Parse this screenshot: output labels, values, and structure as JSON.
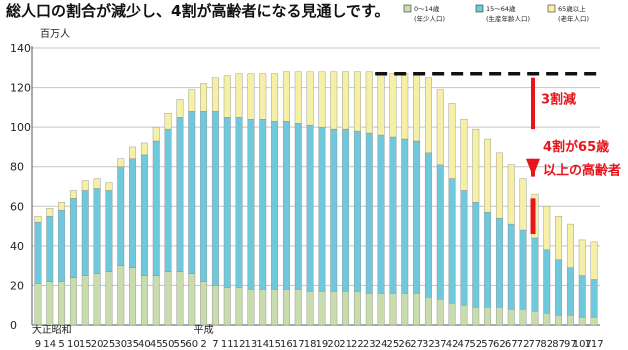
{
  "title": "総人口の割合が減少し、4割が高齢者になる見通しです。",
  "chart_data": {
    "type": "bar",
    "stacked": true,
    "y_unit": "百万人",
    "ylim": [
      0,
      140
    ],
    "yticks": [
      0,
      20,
      40,
      60,
      80,
      100,
      120,
      140
    ],
    "grid": true,
    "legend": {
      "position": "top-right",
      "items": [
        {
          "label": "0〜14歳",
          "sublabel": "(年少人口)",
          "color": "#c8dcae"
        },
        {
          "label": "15〜64歳",
          "sublabel": "(生産年齢人口)",
          "color": "#6fc8dc"
        },
        {
          "label": "65歳以上",
          "sublabel": "(老年人口)",
          "color": "#f5f0a6"
        }
      ]
    },
    "x_tick_labels": [
      "9",
      "14",
      "5",
      "10",
      "15",
      "20",
      "25",
      "30",
      "35",
      "40",
      "45",
      "50",
      "55",
      "60",
      "2",
      "7",
      "11",
      "12",
      "13",
      "14",
      "15",
      "16",
      "17",
      "18",
      "19",
      "20",
      "21",
      "22",
      "23",
      "24",
      "25",
      "26",
      "27",
      "32",
      "37",
      "42",
      "47",
      "52",
      "57",
      "62",
      "67",
      "72",
      "77",
      "82",
      "87",
      "97",
      "107",
      "117"
    ],
    "era_labels": [
      "大正",
      "昭和",
      "平成"
    ],
    "series": [
      {
        "name": "0〜14歳",
        "values": [
          21,
          22,
          22,
          24,
          25,
          26,
          27,
          30,
          29,
          25,
          25,
          27,
          27,
          26,
          22,
          20,
          19,
          19,
          18,
          18,
          18,
          18,
          18,
          17,
          17,
          17,
          17,
          17,
          16,
          16,
          16,
          16,
          16,
          14,
          13,
          11,
          10,
          9,
          9,
          9,
          8,
          8,
          7,
          6,
          5,
          5,
          4,
          4
        ]
      },
      {
        "name": "15〜64歳",
        "values": [
          31,
          33,
          36,
          40,
          43,
          43,
          41,
          50,
          55,
          61,
          68,
          72,
          78,
          82,
          86,
          88,
          86,
          86,
          86,
          86,
          85,
          85,
          84,
          84,
          83,
          82,
          82,
          81,
          81,
          80,
          79,
          78,
          77,
          73,
          68,
          63,
          58,
          53,
          48,
          45,
          43,
          40,
          37,
          32,
          28,
          24,
          21,
          19
        ]
      },
      {
        "name": "65歳以上",
        "values": [
          3,
          4,
          4,
          4,
          5,
          5,
          4,
          4,
          6,
          6,
          7,
          8,
          9,
          11,
          14,
          17,
          21,
          22,
          23,
          23,
          24,
          25,
          26,
          27,
          28,
          29,
          29,
          30,
          31,
          31,
          32,
          33,
          34,
          38,
          38,
          38,
          36,
          37,
          37,
          33,
          30,
          26,
          22,
          22,
          22,
          22,
          18,
          19
        ]
      }
    ],
    "projection_line": {
      "from_index": 29,
      "to_index": 47,
      "value": 127
    },
    "annotations": [
      "3割減",
      "4割が65歳以上の高齢者"
    ]
  }
}
